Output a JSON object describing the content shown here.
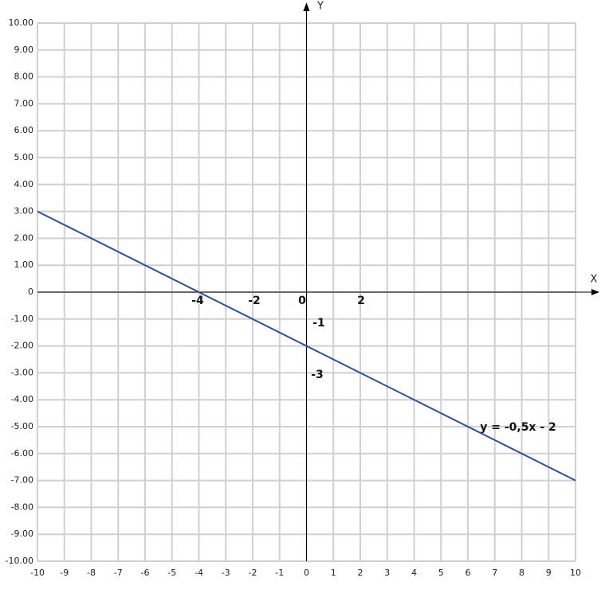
{
  "chart_data": {
    "type": "line",
    "x_label": "X",
    "y_label": "Y",
    "x": [
      -10,
      10
    ],
    "values": [
      3,
      -7
    ],
    "color": "#2e4f9a",
    "xlim": [
      -10,
      10
    ],
    "ylim": [
      -10,
      10
    ],
    "xticks": [
      -10,
      -9,
      -8,
      -7,
      -6,
      -5,
      -4,
      -3,
      -2,
      -1,
      0,
      1,
      2,
      3,
      4,
      5,
      6,
      7,
      8,
      9,
      10
    ],
    "yticks": [
      {
        "value": -10,
        "label": "-10.00"
      },
      {
        "value": -9,
        "label": "-9.00"
      },
      {
        "value": -8,
        "label": "-8.00"
      },
      {
        "value": -7,
        "label": "-7.00"
      },
      {
        "value": -6,
        "label": "-6.00"
      },
      {
        "value": -5,
        "label": "-5.00"
      },
      {
        "value": -4,
        "label": "-4.00"
      },
      {
        "value": -3,
        "label": "-3.00"
      },
      {
        "value": -2,
        "label": "-2.00"
      },
      {
        "value": -1,
        "label": "-1.00"
      },
      0,
      {
        "value": 1,
        "label": "1.00"
      },
      {
        "value": 2,
        "label": "2.00"
      },
      {
        "value": 3,
        "label": "3.00"
      },
      {
        "value": 4,
        "label": "4.00"
      },
      {
        "value": 5,
        "label": "5.00"
      },
      {
        "value": 6,
        "label": "6.00"
      },
      {
        "value": 7,
        "label": "7.00"
      },
      {
        "value": 8,
        "label": "8.00"
      },
      {
        "value": 9,
        "label": "9.00"
      },
      {
        "value": 10,
        "label": "10.00"
      }
    ],
    "grid": true,
    "annotations": [
      "-4",
      "-2",
      "0",
      "2",
      "-1",
      "-3",
      "y = -0,5x - 2"
    ]
  }
}
